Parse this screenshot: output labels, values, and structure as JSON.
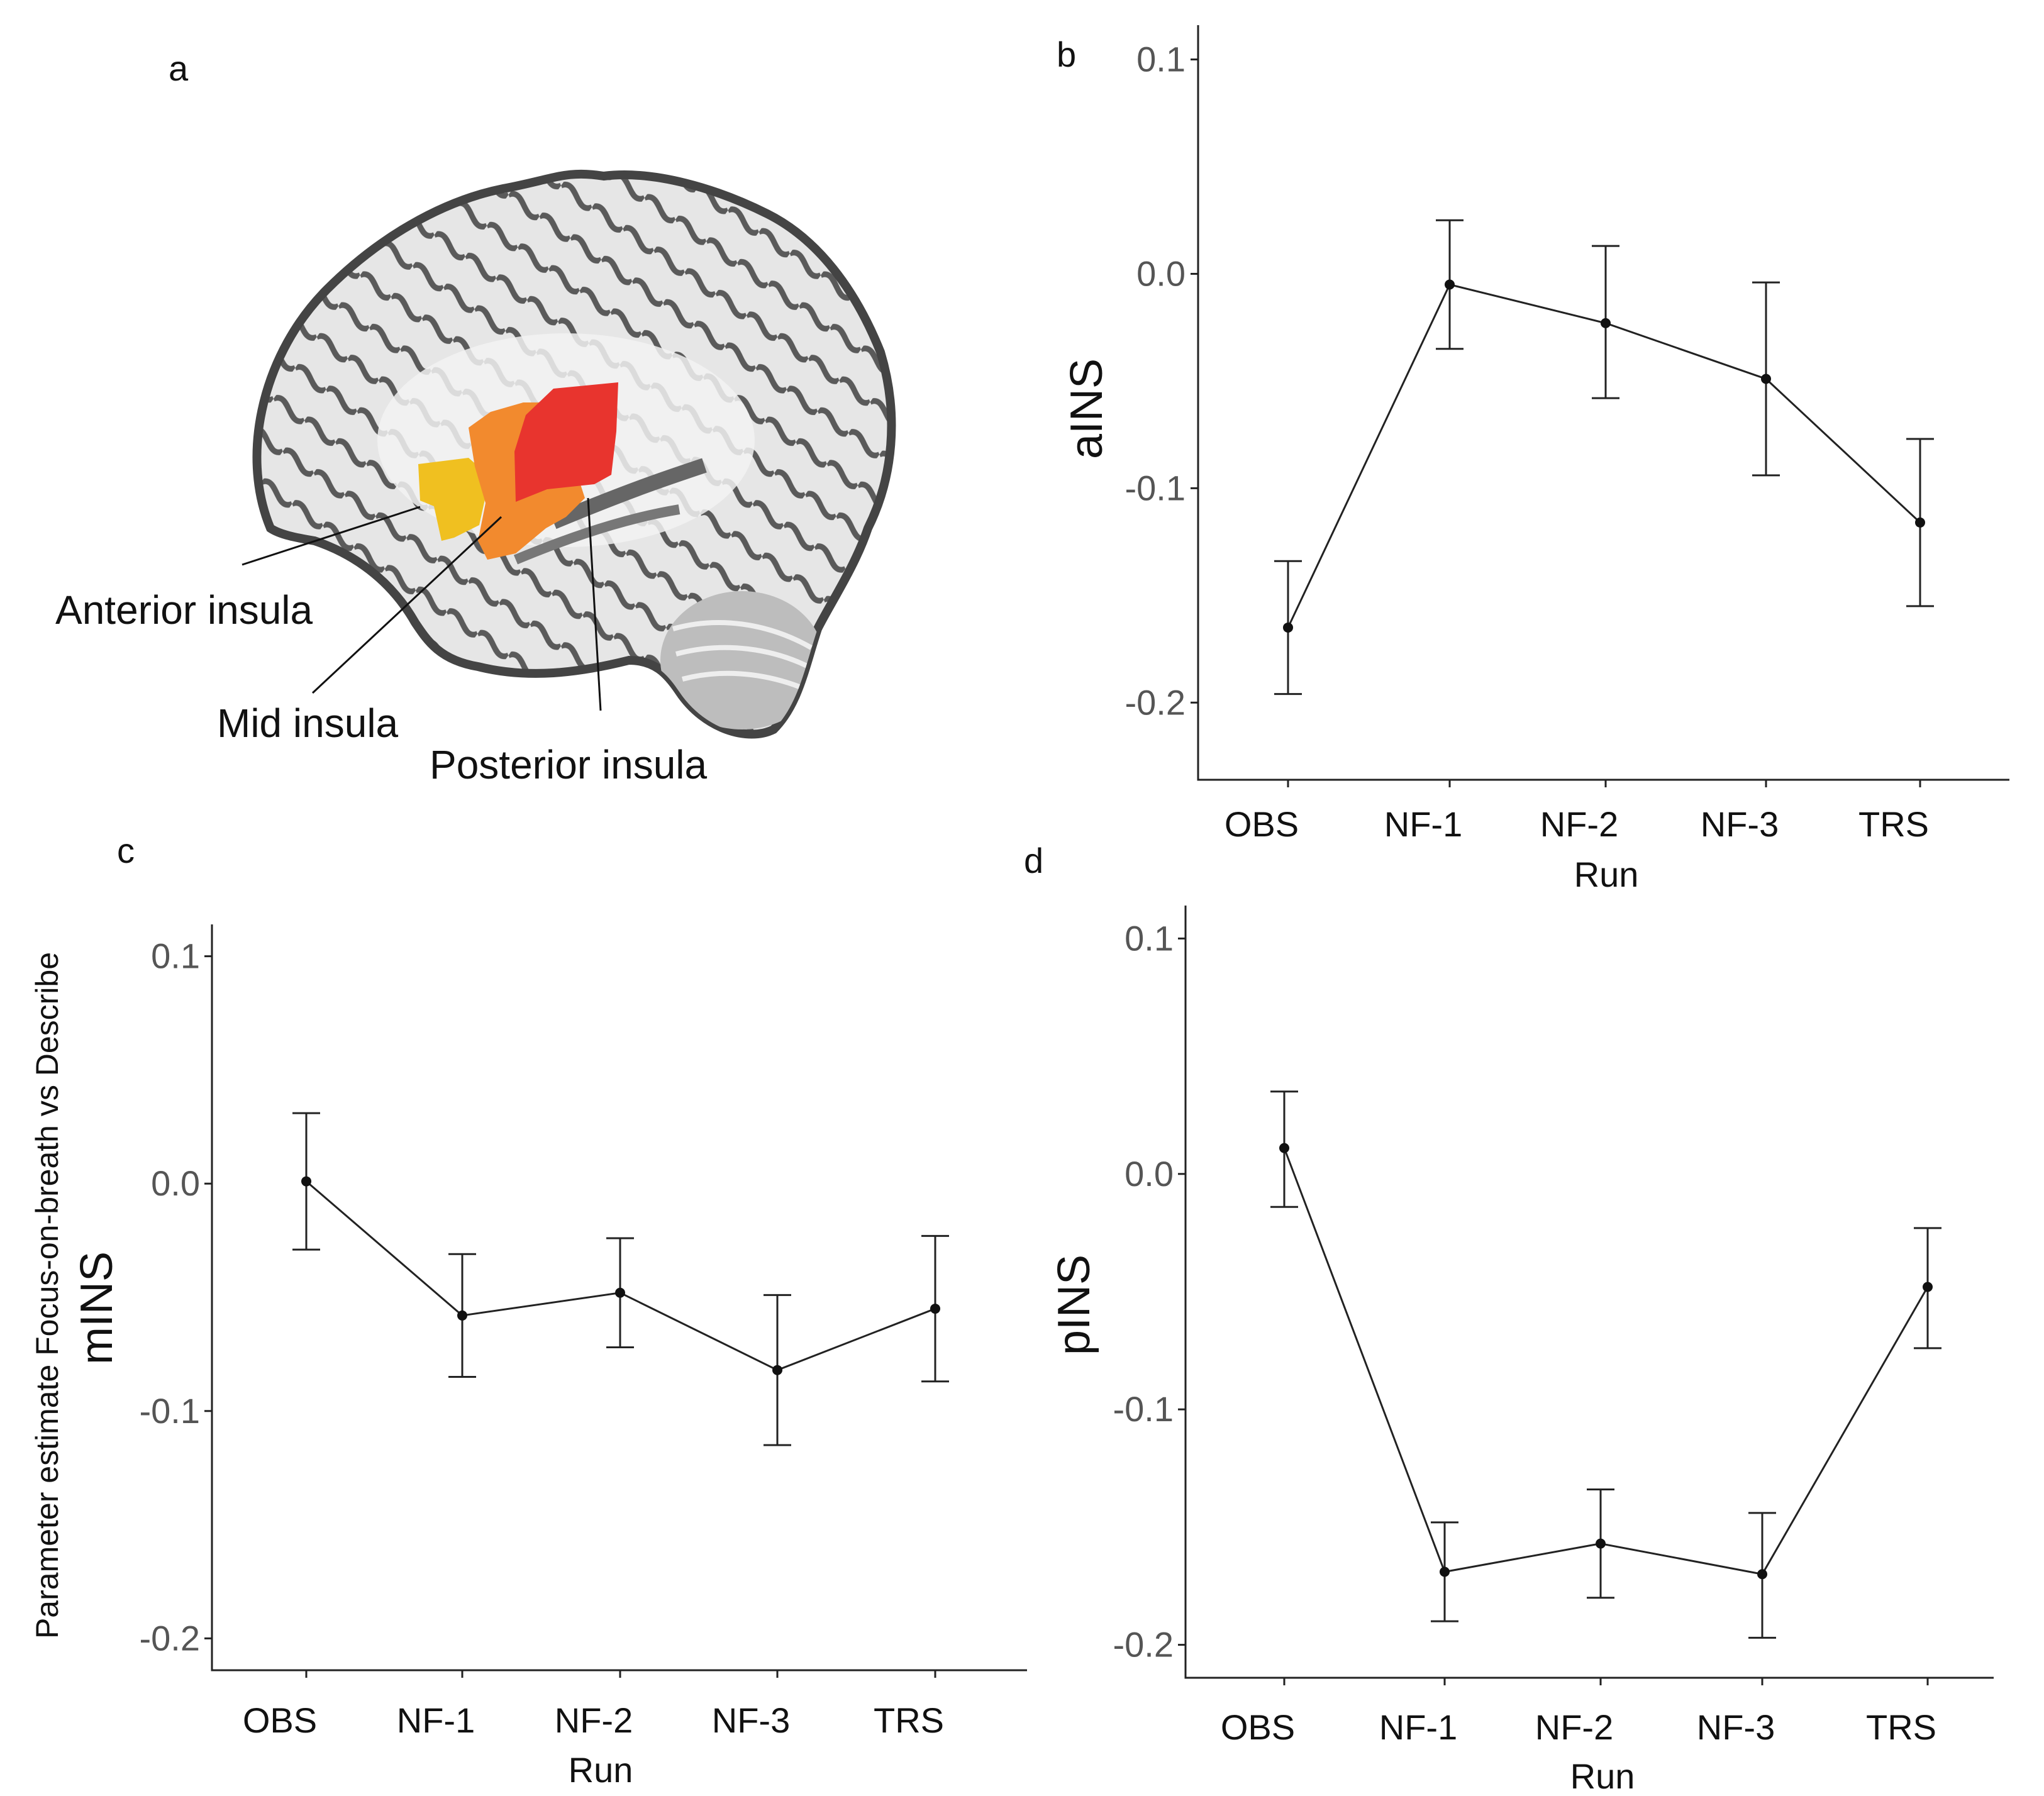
{
  "figure": {
    "panel_a_letter": "a",
    "shared_ylabel": "Parameter estimate Focus-on-breath vs Describe",
    "brain": {
      "labels": {
        "anterior": "Anterior insula",
        "mid": "Mid insula",
        "posterior": "Posterior insula"
      },
      "colors": {
        "anterior": "#f0c020",
        "mid": "#f28a2e",
        "posterior": "#e8342e"
      }
    }
  },
  "chart_data": [
    {
      "id": "b",
      "panel": "b",
      "type": "line",
      "categories": [
        "OBS",
        "NF-1",
        "NF-2",
        "NF-3",
        "TRS"
      ],
      "values": [
        -0.165,
        -0.005,
        -0.023,
        -0.049,
        -0.116
      ],
      "err_low": [
        -0.196,
        -0.035,
        -0.058,
        -0.094,
        -0.155
      ],
      "err_high": [
        -0.134,
        0.025,
        0.013,
        -0.004,
        -0.077
      ],
      "ylabel": "aINS",
      "xlabel": "Run",
      "yticks": [
        "0.1",
        "0.0",
        "-0.1",
        "-0.2"
      ],
      "ylim": [
        -0.236,
        0.116
      ]
    },
    {
      "id": "c",
      "panel": "c",
      "type": "line",
      "categories": [
        "OBS",
        "NF-1",
        "NF-2",
        "NF-3",
        "TRS"
      ],
      "values": [
        0.001,
        -0.058,
        -0.048,
        -0.082,
        -0.055
      ],
      "err_low": [
        -0.029,
        -0.085,
        -0.072,
        -0.115,
        -0.087
      ],
      "err_high": [
        0.031,
        -0.031,
        -0.024,
        -0.049,
        -0.023
      ],
      "ylabel": "mINS",
      "xlabel": "Run",
      "yticks": [
        "0.1",
        "0.0",
        "-0.1",
        "-0.2"
      ],
      "ylim": [
        -0.214,
        0.114
      ]
    },
    {
      "id": "d",
      "panel": "d",
      "type": "line",
      "categories": [
        "OBS",
        "NF-1",
        "NF-2",
        "NF-3",
        "TRS"
      ],
      "values": [
        0.011,
        -0.169,
        -0.157,
        -0.17,
        -0.048
      ],
      "err_low": [
        -0.014,
        -0.19,
        -0.18,
        -0.197,
        -0.074
      ],
      "err_high": [
        0.035,
        -0.148,
        -0.134,
        -0.144,
        -0.023
      ],
      "ylabel": "pINS",
      "xlabel": "Run",
      "yticks": [
        "0.1",
        "0.0",
        "-0.1",
        "-0.2"
      ],
      "ylim": [
        -0.214,
        0.114
      ]
    }
  ]
}
